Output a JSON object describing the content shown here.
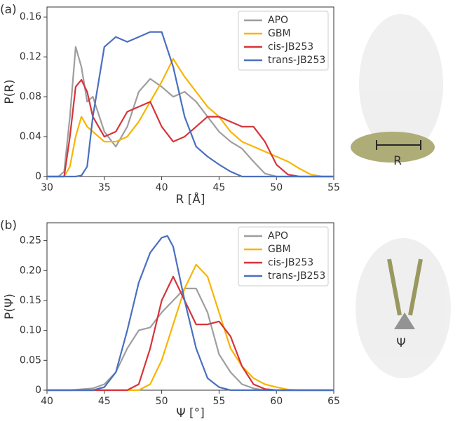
{
  "chart_data": [
    {
      "type": "line",
      "panel_label": "(a)",
      "ylabel": "P(R)",
      "xlabel": "R [Å]",
      "annotation": "R",
      "x": [
        30,
        31,
        31.5,
        32,
        32.5,
        33,
        33.5,
        34,
        35,
        36,
        37,
        38,
        39,
        40,
        41,
        42,
        43,
        44,
        45,
        46,
        47,
        48,
        49,
        50,
        51,
        52,
        53,
        54,
        55
      ],
      "xlim": [
        30,
        55
      ],
      "xticks": [
        30,
        35,
        40,
        45,
        50,
        55
      ],
      "ylim": [
        0,
        0.17
      ],
      "yticks": [
        0,
        0.04,
        0.08,
        0.12,
        0.16
      ],
      "legend": "upper right",
      "series": [
        {
          "name": "APO",
          "color": "#9e9e9e",
          "values": [
            0,
            0,
            0.005,
            0.06,
            0.13,
            0.11,
            0.075,
            0.08,
            0.045,
            0.03,
            0.05,
            0.085,
            0.098,
            0.09,
            0.08,
            0.085,
            0.075,
            0.06,
            0.045,
            0.035,
            0.028,
            0.015,
            0.003,
            0,
            0,
            0,
            0,
            0,
            0
          ]
        },
        {
          "name": "GBM",
          "color": "#f7b500",
          "values": [
            0,
            0,
            0,
            0.01,
            0.04,
            0.06,
            0.05,
            0.045,
            0.035,
            0.035,
            0.04,
            0.055,
            0.075,
            0.095,
            0.118,
            0.1,
            0.085,
            0.07,
            0.06,
            0.045,
            0.035,
            0.03,
            0.025,
            0.02,
            0.015,
            0.008,
            0.002,
            0,
            0
          ]
        },
        {
          "name": "cis-JB253",
          "color": "#d7333a",
          "values": [
            0,
            0,
            0,
            0.04,
            0.09,
            0.097,
            0.085,
            0.06,
            0.04,
            0.045,
            0.065,
            0.07,
            0.075,
            0.05,
            0.035,
            0.04,
            0.05,
            0.06,
            0.06,
            0.055,
            0.05,
            0.05,
            0.035,
            0.012,
            0.002,
            0,
            0,
            0,
            0
          ]
        },
        {
          "name": "trans-JB253",
          "color": "#4a6fbf",
          "values": [
            0,
            0,
            0,
            0,
            0,
            0.001,
            0.01,
            0.06,
            0.13,
            0.14,
            0.135,
            0.14,
            0.145,
            0.145,
            0.11,
            0.06,
            0.03,
            0.02,
            0.012,
            0.005,
            0,
            0,
            0,
            0,
            0,
            0,
            0,
            0,
            0
          ]
        }
      ]
    },
    {
      "type": "line",
      "panel_label": "(b)",
      "ylabel": "P(Ψ)",
      "xlabel": "Ψ [°]",
      "annotation": "Ψ",
      "x": [
        40,
        42,
        44,
        45,
        46,
        47,
        48,
        49,
        50,
        50.5,
        51,
        52,
        53,
        54,
        55,
        56,
        57,
        58,
        59,
        60,
        61,
        62,
        65
      ],
      "xlim": [
        40,
        65
      ],
      "xticks": [
        40,
        45,
        50,
        55,
        60,
        65
      ],
      "ylim": [
        0,
        0.28
      ],
      "yticks": [
        0,
        0.05,
        {
          "value": 0.1,
          "label": "0.10"
        },
        0.15,
        {
          "value": 0.2,
          "label": "0.20"
        },
        0.25
      ],
      "legend": "upper right",
      "series": [
        {
          "name": "APO",
          "color": "#9e9e9e",
          "values": [
            0,
            0,
            0.003,
            0.01,
            0.03,
            0.07,
            0.1,
            0.105,
            0.13,
            0.14,
            0.15,
            0.17,
            0.17,
            0.13,
            0.06,
            0.03,
            0.01,
            0.003,
            0,
            0,
            0,
            0,
            0
          ]
        },
        {
          "name": "GBM",
          "color": "#f7b500",
          "values": [
            0,
            0,
            0,
            0,
            0,
            0,
            0,
            0.01,
            0.05,
            0.08,
            0.11,
            0.17,
            0.21,
            0.19,
            0.13,
            0.07,
            0.04,
            0.02,
            0.01,
            0.005,
            0.001,
            0,
            0
          ]
        },
        {
          "name": "cis-JB253",
          "color": "#d7333a",
          "values": [
            0,
            0,
            0,
            0,
            0,
            0,
            0.01,
            0.07,
            0.15,
            0.17,
            0.19,
            0.15,
            0.11,
            0.11,
            0.115,
            0.09,
            0.04,
            0.01,
            0.002,
            0,
            0,
            0,
            0
          ]
        },
        {
          "name": "trans-JB253",
          "color": "#4a6fbf",
          "values": [
            0,
            0,
            0,
            0.005,
            0.03,
            0.1,
            0.18,
            0.23,
            0.255,
            0.258,
            0.24,
            0.15,
            0.07,
            0.02,
            0.005,
            0,
            0,
            0,
            0,
            0,
            0,
            0,
            0
          ]
        }
      ]
    }
  ]
}
